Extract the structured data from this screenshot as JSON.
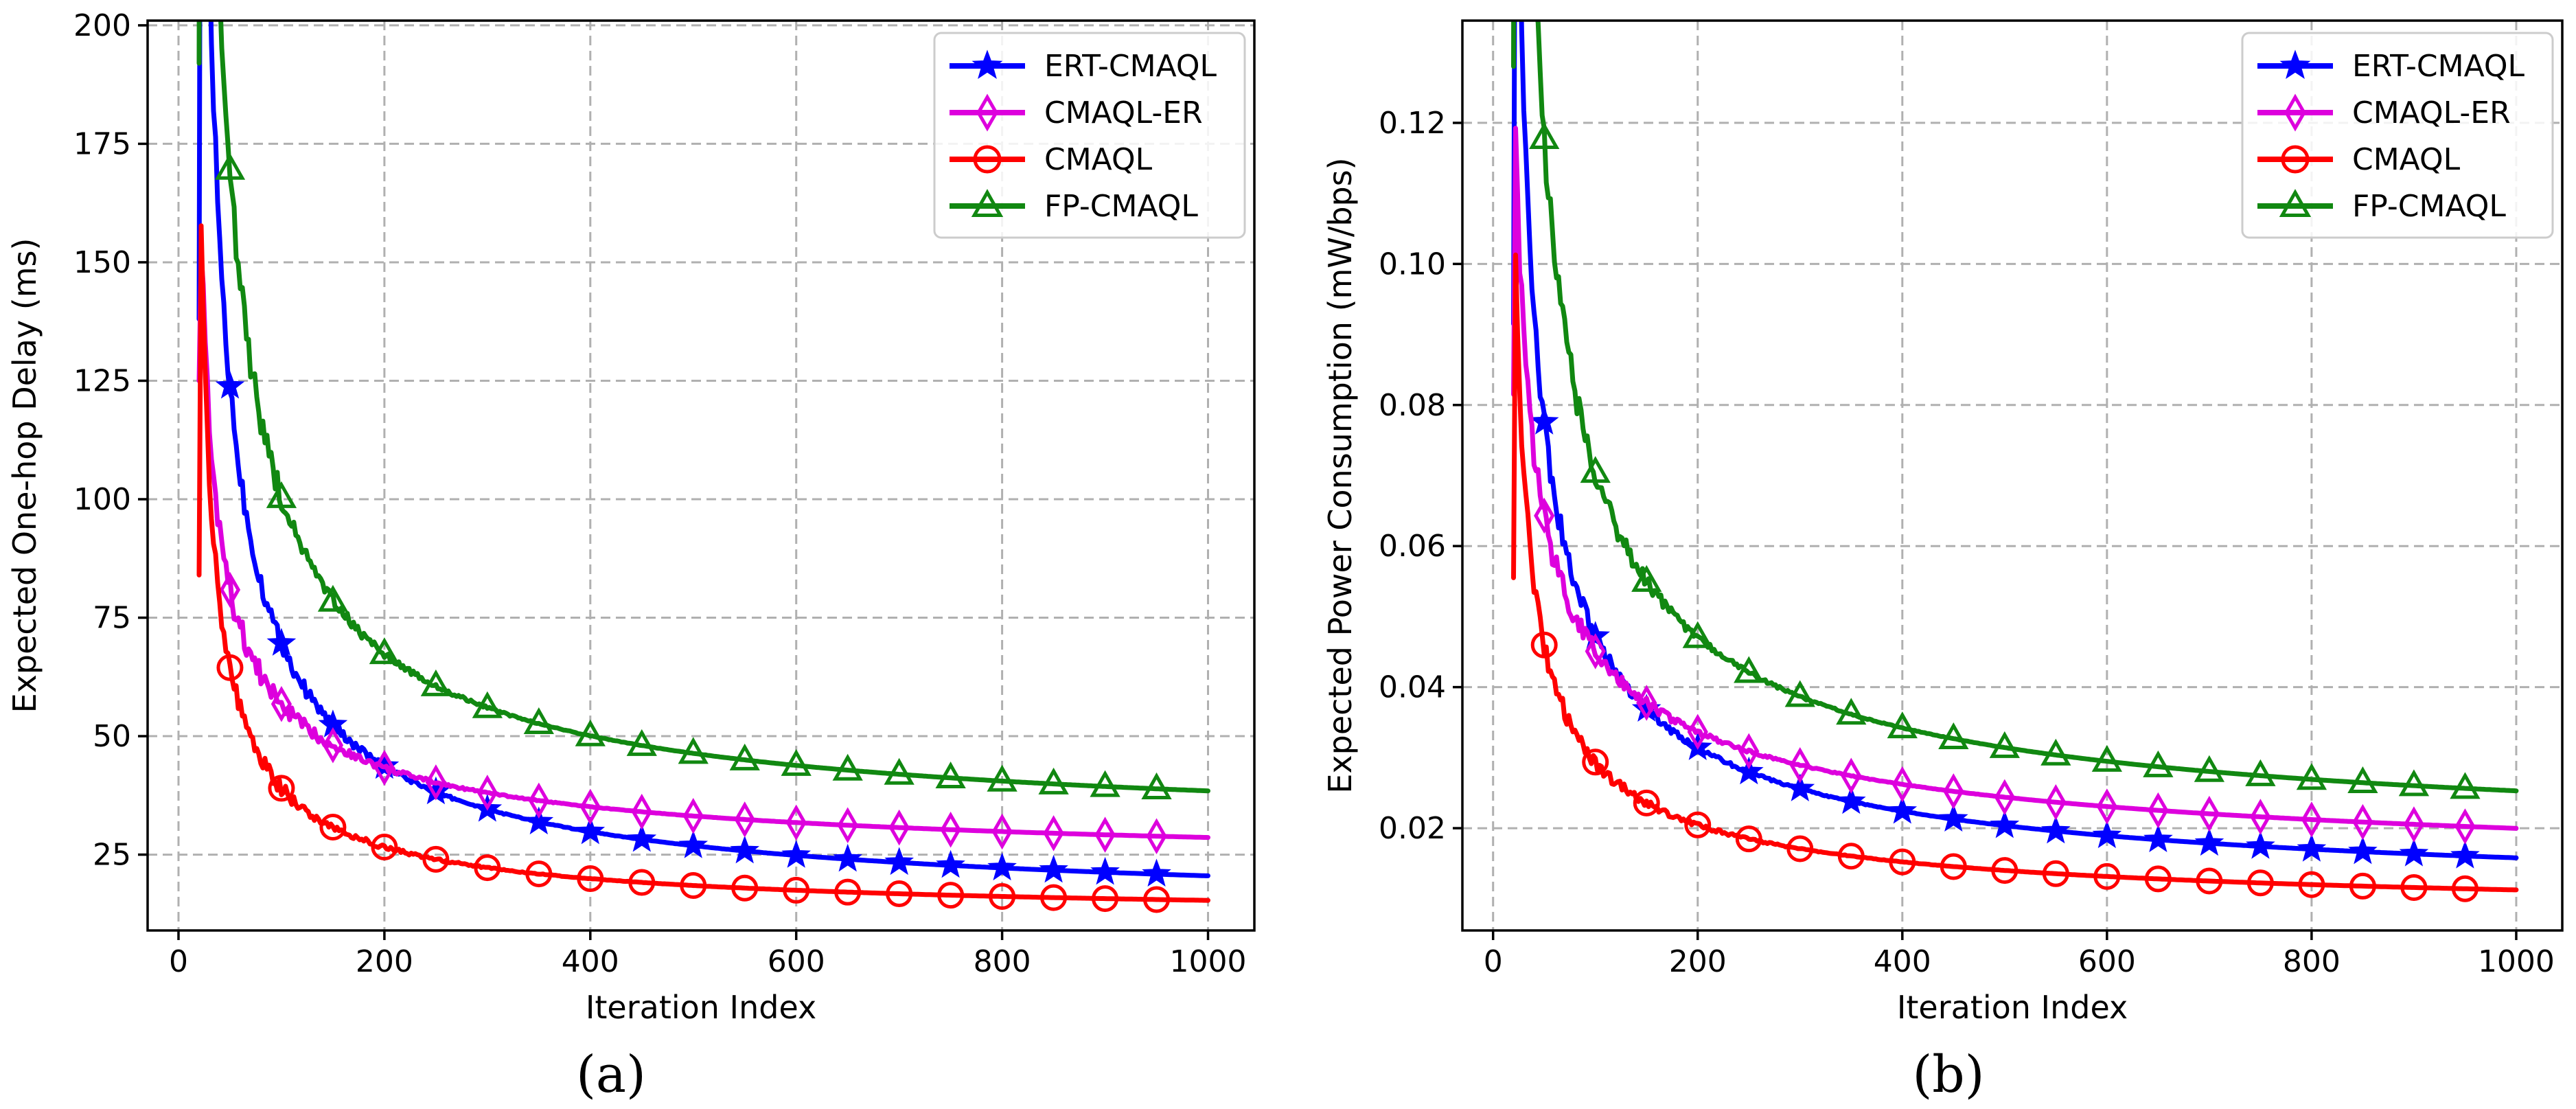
{
  "chart_data": [
    {
      "type": "line",
      "caption": "(a)",
      "xlabel": "Iteration Index",
      "ylabel": "Expected One-hop Delay (ms)",
      "xlim": [
        -30,
        1045
      ],
      "ylim": [
        9,
        201
      ],
      "xticks": [
        0,
        200,
        400,
        600,
        800,
        1000
      ],
      "yticks": [
        25,
        50,
        75,
        100,
        125,
        150,
        175,
        200
      ],
      "x_tick_labels": [
        "0",
        "200",
        "400",
        "600",
        "800",
        "1000"
      ],
      "y_tick_labels": [
        "25",
        "50",
        "75",
        "100",
        "125",
        "150",
        "175",
        "200"
      ],
      "grid": true,
      "legend_position": "top-right",
      "series": [
        {
          "name": "ERT-CMAQL",
          "color": "#0000ff",
          "marker": "star",
          "a": 12.0,
          "b": 1980,
          "p": 0.79,
          "x0": 20,
          "first": 138,
          "noise": 4.5
        },
        {
          "name": "CMAQL-ER",
          "color": "#dd00dd",
          "marker": "diamond",
          "a": 20.0,
          "b": 540,
          "p": 0.6,
          "x0": 20,
          "first": 125,
          "noise": 4.5
        },
        {
          "name": "CMAQL",
          "color": "#ff0000",
          "marker": "circle",
          "a": 11.0,
          "b": 880,
          "p": 0.77,
          "x0": 20,
          "first": 84,
          "noise": 3.5
        },
        {
          "name": "FP-CMAQL",
          "color": "#118811",
          "marker": "triangle",
          "a": 28.0,
          "b": 2600,
          "p": 0.8,
          "x0": 20,
          "first": 192,
          "noise": 6.0
        }
      ]
    },
    {
      "type": "line",
      "caption": "(b)",
      "xlabel": "Iteration Index",
      "ylabel": "Expected Power Consumption (mW/bps)",
      "xlim": [
        -30,
        1045
      ],
      "ylim": [
        0.0055,
        0.1345
      ],
      "xticks": [
        0,
        200,
        400,
        600,
        800,
        1000
      ],
      "yticks": [
        0.02,
        0.04,
        0.06,
        0.08,
        0.1,
        0.12
      ],
      "x_tick_labels": [
        "0",
        "200",
        "400",
        "600",
        "800",
        "1000"
      ],
      "y_tick_labels": [
        "0.02",
        "0.04",
        "0.06",
        "0.08",
        "0.10",
        "0.12"
      ],
      "grid": true,
      "legend_position": "top-right",
      "series": [
        {
          "name": "ERT-CMAQL",
          "color": "#0000ff",
          "marker": "star",
          "a": 0.0085,
          "b": 0.85,
          "p": 0.69,
          "x0": 20,
          "first": 0.0915,
          "noise": 0.0028
        },
        {
          "name": "CMAQL-ER",
          "color": "#dd00dd",
          "marker": "diamond",
          "a": 0.01,
          "b": 0.36,
          "p": 0.52,
          "x0": 20,
          "first": 0.0815,
          "noise": 0.0028
        },
        {
          "name": "CMAQL",
          "color": "#ff0000",
          "marker": "circle",
          "a": 0.0065,
          "b": 0.42,
          "p": 0.65,
          "x0": 20,
          "first": 0.0555,
          "noise": 0.0022
        },
        {
          "name": "FP-CMAQL",
          "color": "#118811",
          "marker": "triangle",
          "a": 0.0165,
          "b": 1.55,
          "p": 0.75,
          "x0": 20,
          "first": 0.128,
          "noise": 0.004
        }
      ]
    }
  ]
}
